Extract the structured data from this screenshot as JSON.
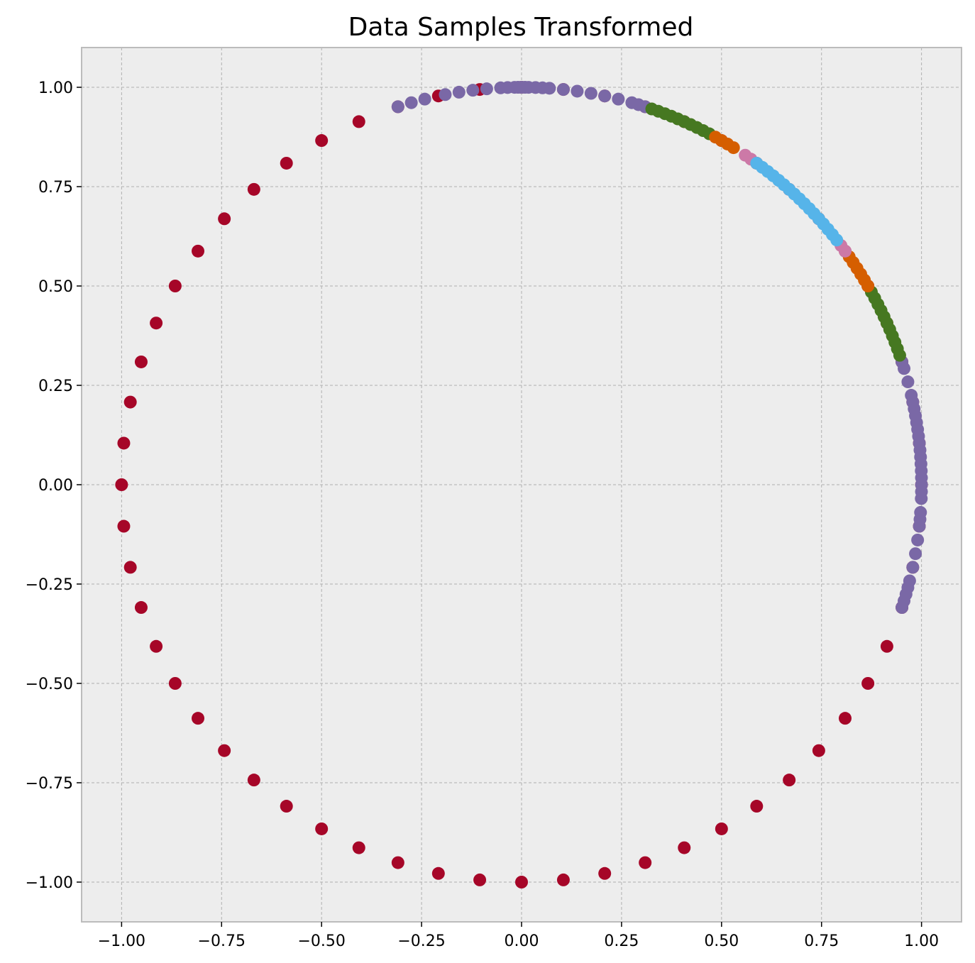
{
  "chart_data": {
    "type": "scatter",
    "title": "Data Samples Transformed",
    "xlabel": "",
    "ylabel": "",
    "xlim": [
      -1.1,
      1.1
    ],
    "ylim": [
      -1.1,
      1.1
    ],
    "grid": true,
    "x_ticks": [
      -1.0,
      -0.75,
      -0.5,
      -0.25,
      0.0,
      0.25,
      0.5,
      0.75,
      1.0
    ],
    "x_tick_labels": [
      "−1.00",
      "−0.75",
      "−0.50",
      "−0.25",
      "0.00",
      "0.25",
      "0.50",
      "0.75",
      "1.00"
    ],
    "y_ticks": [
      1.0,
      0.75,
      0.5,
      0.25,
      0.0,
      -0.25,
      -0.5,
      -0.75,
      -1.0
    ],
    "y_tick_labels": [
      "1.00",
      "0.75",
      "0.50",
      "0.25",
      "0.00",
      "−0.25",
      "−0.50",
      "−0.75",
      "−1.00"
    ],
    "series": [
      {
        "color": "#A60628",
        "angles_deg": [
          0,
          6,
          12,
          18,
          24,
          30,
          36,
          42,
          48,
          54,
          60,
          66,
          72,
          78,
          84,
          90,
          96,
          102,
          108,
          114,
          120,
          126,
          132,
          138,
          144,
          150,
          156,
          162,
          168,
          174,
          180,
          186,
          192,
          198,
          204,
          210,
          216,
          222,
          228,
          234,
          240,
          246,
          252,
          258,
          264,
          270,
          276,
          282,
          288,
          294,
          300,
          306,
          312,
          318,
          324,
          330,
          336,
          342,
          348,
          354
        ]
      },
      {
        "color": "#7A68A6",
        "angles_deg": [
          -18,
          -17,
          -16,
          -15,
          -14,
          -12,
          -10,
          -8,
          -6,
          -5,
          -4,
          -2,
          -1,
          0,
          1,
          2,
          3,
          4,
          5,
          6,
          7,
          8,
          9,
          10,
          11,
          12,
          13,
          15,
          17,
          18,
          72,
          73,
          74,
          76,
          78,
          80,
          82,
          84,
          86,
          87,
          88,
          89,
          89.5,
          90,
          90.5,
          91,
          92,
          93,
          95,
          97,
          99,
          101,
          104,
          106,
          108
        ]
      },
      {
        "color": "#467821",
        "angles_deg": [
          19,
          20,
          21,
          22,
          23,
          24,
          25,
          26,
          27,
          28,
          29,
          62,
          63,
          64,
          65,
          66,
          67,
          68,
          69,
          70,
          71
        ]
      },
      {
        "color": "#D55E00",
        "angles_deg": [
          30,
          31,
          32,
          33,
          34,
          35,
          58,
          59,
          60,
          61
        ]
      },
      {
        "color": "#CC79A7",
        "angles_deg": [
          36,
          37,
          55,
          56
        ]
      },
      {
        "color": "#56B4E9",
        "angles_deg": [
          38,
          39,
          40,
          41,
          42,
          43,
          44,
          45,
          46,
          47,
          48,
          49,
          50,
          51,
          52,
          53,
          54
        ]
      }
    ]
  }
}
